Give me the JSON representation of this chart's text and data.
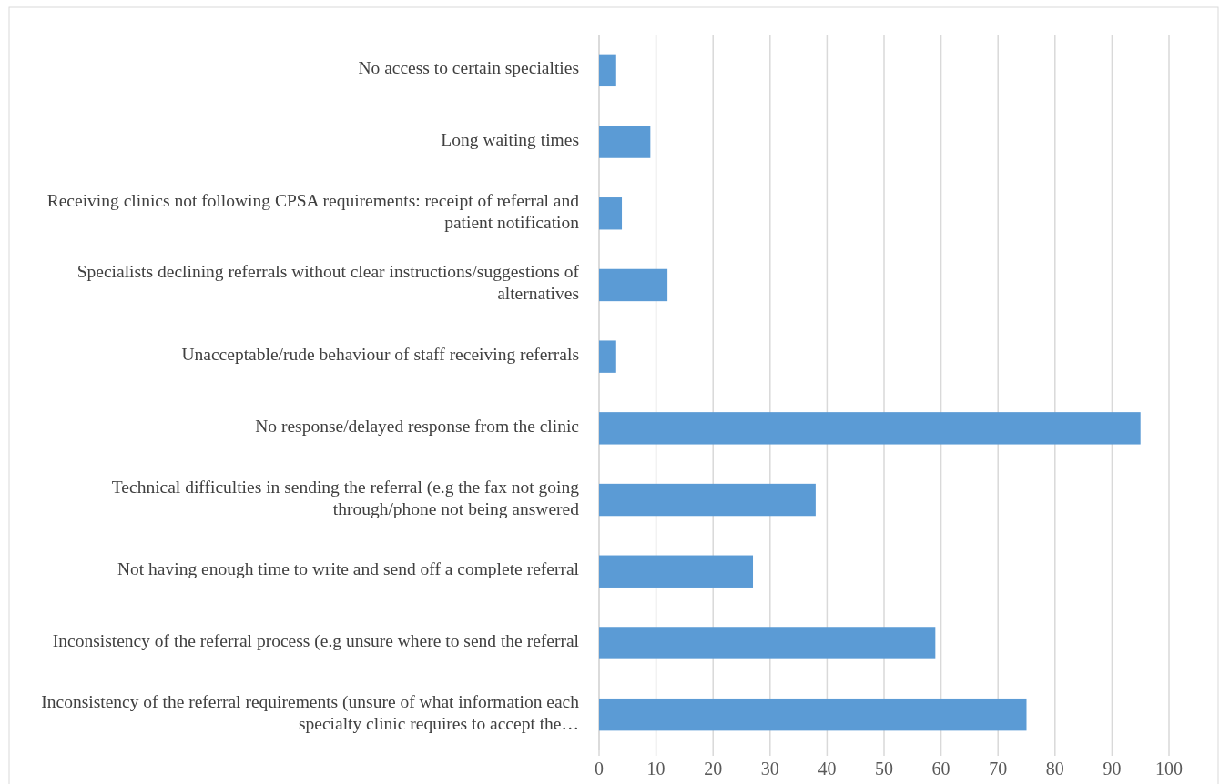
{
  "chart_data": {
    "type": "bar",
    "orientation": "horizontal",
    "categories": [
      "No access to certain specialties",
      "Long waiting times",
      "Receiving clinics not following CPSA requirements: receipt of referral and patient notification",
      "Specialists declining referrals without clear instructions/suggestions of alternatives",
      "Unacceptable/rude behaviour of staff receiving referrals",
      "No response/delayed response from the clinic",
      "Technical difficulties in sending the referral (e.g the fax not going through/phone not being answered",
      "Not having enough time to write and send off a complete referral",
      "Inconsistency of the referral process (e.g unsure where to send the referral",
      "Inconsistency of  the referral requirements (unsure of what information each specialty clinic requires to accept the…"
    ],
    "values": [
      3,
      9,
      4,
      12,
      3,
      95,
      38,
      27,
      59,
      75
    ],
    "color": "#5b9bd5",
    "xlim": [
      0,
      100
    ],
    "xticks": [
      0,
      10,
      20,
      30,
      40,
      50,
      60,
      70,
      80,
      90,
      100
    ],
    "grid": "x"
  }
}
